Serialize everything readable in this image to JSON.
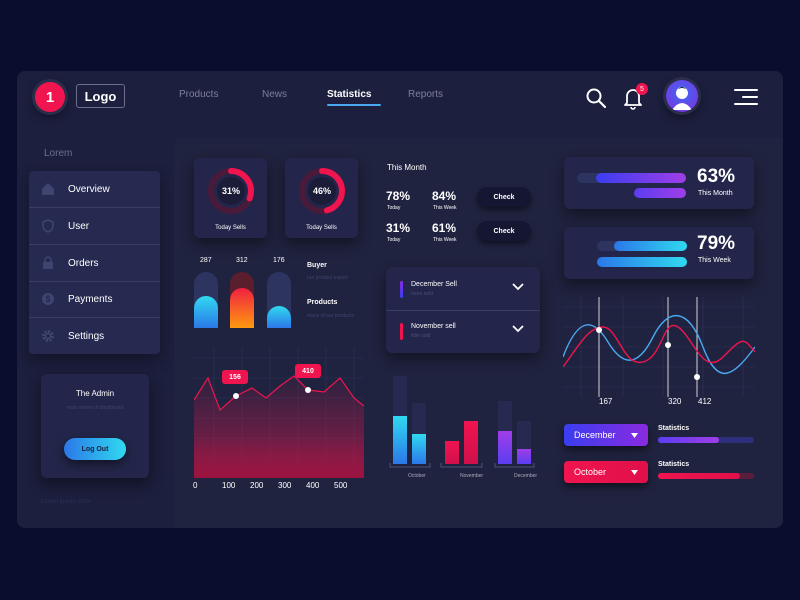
{
  "header": {
    "logo_mark": "1",
    "logo_text": "Logo",
    "nav": [
      {
        "label": "Products"
      },
      {
        "label": "News"
      },
      {
        "label": "Statistics"
      },
      {
        "label": "Reports"
      }
    ],
    "notification_count": "5"
  },
  "sidebar": {
    "title": "Lorem",
    "items": [
      {
        "label": "Overview",
        "icon": "home-icon"
      },
      {
        "label": "User",
        "icon": "shield-icon"
      },
      {
        "label": "Orders",
        "icon": "lock-icon"
      },
      {
        "label": "Payments",
        "icon": "dollar-icon"
      },
      {
        "label": "Settings",
        "icon": "gear-icon"
      }
    ],
    "admin": {
      "title": "The Admin",
      "subtitle": "main owner of dashboard",
      "logout_label": "Log Out"
    },
    "footer_text": "Lorem ipsum dolor"
  },
  "donuts": [
    {
      "value": "31%",
      "label": "Today Sells",
      "fraction": 0.31
    },
    {
      "value": "46%",
      "label": "Today Sells",
      "fraction": 0.46
    }
  ],
  "bars": {
    "values": [
      "287",
      "312",
      "176"
    ],
    "legend": [
      {
        "title": "Buyer",
        "sub": "run product export"
      },
      {
        "title": "Products",
        "sub": "many of our products"
      }
    ]
  },
  "line_chart": {
    "x_ticks": [
      "0",
      "100",
      "200",
      "300",
      "400",
      "500"
    ],
    "callouts": [
      "156",
      "410"
    ]
  },
  "this_month": {
    "title": "This Month",
    "stats": [
      {
        "value": "78%",
        "period": "Today"
      },
      {
        "value": "84%",
        "period": "This Week"
      },
      {
        "value": "31%",
        "period": "Today"
      },
      {
        "value": "61%",
        "period": "This Week"
      }
    ],
    "check_label": "Check"
  },
  "sells_list": [
    {
      "title": "December Sell",
      "sub": "more sold"
    },
    {
      "title": "November sell",
      "sub": "little sold"
    }
  ],
  "grouped_bars": {
    "categories": [
      "October",
      "November",
      "December"
    ]
  },
  "progress_cards": [
    {
      "value": "63%",
      "period": "This Month"
    },
    {
      "value": "79%",
      "period": "This Week"
    }
  ],
  "wave_chart": {
    "ticks": [
      "167",
      "320",
      "412"
    ]
  },
  "dropdowns": [
    {
      "label": "December",
      "stat_label": "Statistics",
      "progress": 0.64
    },
    {
      "label": "October",
      "stat_label": "Statistics",
      "progress": 0.85
    }
  ]
}
